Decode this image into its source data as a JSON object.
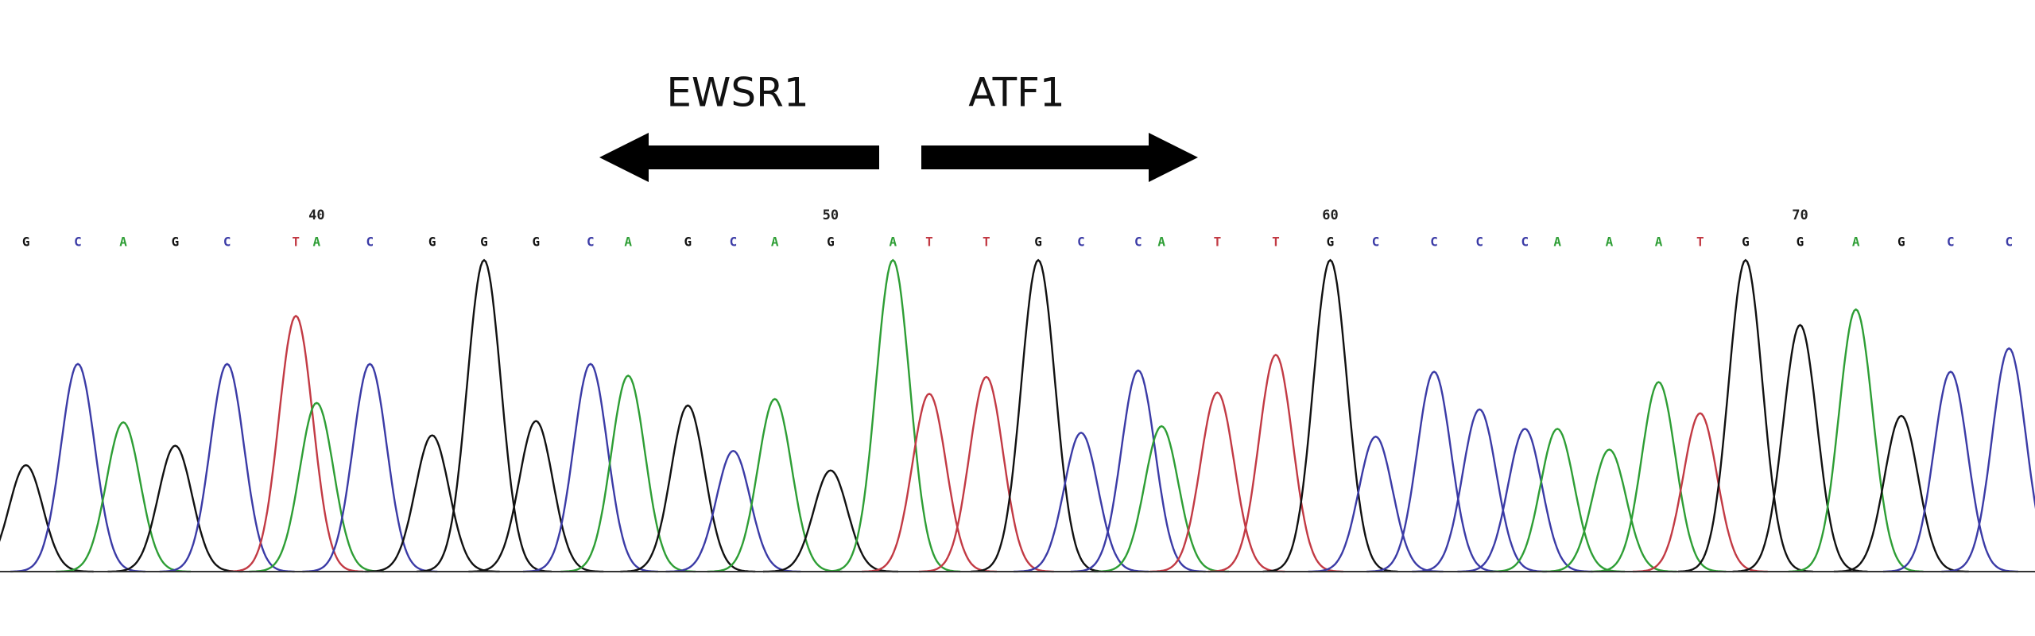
{
  "labels": {
    "left_gene": "EWSR1",
    "right_gene": "ATF1"
  },
  "positions": [
    {
      "label": "40",
      "base_index": 6
    },
    {
      "label": "50",
      "base_index": 16
    },
    {
      "label": "60",
      "base_index": 26
    },
    {
      "label": "70",
      "base_index": 36
    }
  ],
  "colors": {
    "A": "#2e9e35",
    "C": "#3b3ba6",
    "G": "#111111",
    "T": "#c23a44"
  },
  "bases": [
    "G",
    "C",
    "A",
    "G",
    "C",
    "T",
    "A",
    "C",
    "G",
    "G",
    "G",
    "C",
    "A",
    "G",
    "C",
    "A",
    "G",
    "A",
    "T",
    "T",
    "G",
    "C",
    "C",
    "A",
    "T",
    "T",
    "G",
    "C",
    "C",
    "C",
    "C",
    "A",
    "A",
    "A",
    "T",
    "G",
    "G",
    "A",
    "G",
    "C",
    "C"
  ],
  "peak_x": [
    20,
    60,
    95,
    135,
    175,
    228,
    244,
    285,
    333,
    373,
    413,
    455,
    484,
    530,
    565,
    597,
    640,
    688,
    716,
    760,
    800,
    833,
    877,
    895,
    938,
    983,
    1025,
    1060,
    1105,
    1140,
    1175,
    1200,
    1240,
    1278,
    1310,
    1345,
    1387,
    1430,
    1465,
    1503,
    1548
  ],
  "peak_heights": [
    82,
    160,
    115,
    97,
    160,
    197,
    130,
    160,
    105,
    240,
    116,
    160,
    151,
    128,
    93,
    133,
    78,
    240,
    137,
    150,
    240,
    107,
    155,
    112,
    138,
    167,
    240,
    104,
    154,
    125,
    110,
    110,
    94,
    146,
    122,
    240,
    190,
    202,
    120,
    154,
    172
  ]
}
